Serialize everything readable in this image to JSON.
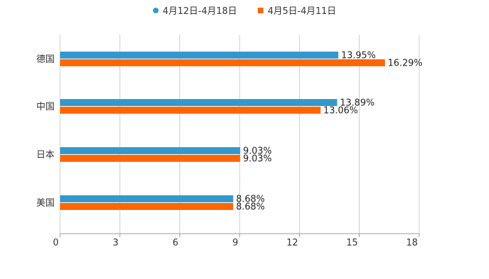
{
  "legend": [
    {
      "label": "4月12日-4月18日",
      "color": "#3399cc",
      "marker": "circle"
    },
    {
      "label": "4月5日-4月11日",
      "color": "#ff6600",
      "marker": "square"
    }
  ],
  "chart_data": {
    "type": "bar",
    "orientation": "horizontal",
    "categories": [
      "德国",
      "中国",
      "日本",
      "美国"
    ],
    "series": [
      {
        "name": "4月12日-4月18日",
        "color": "#3399cc",
        "values": [
          13.95,
          13.89,
          9.03,
          8.68
        ],
        "labels": [
          "13.95%",
          "13.89%",
          "9.03%",
          "8.68%"
        ]
      },
      {
        "name": "4月5日-4月11日",
        "color": "#ff6600",
        "values": [
          16.29,
          13.06,
          9.03,
          8.68
        ],
        "labels": [
          "16.29%",
          "13.06%",
          "9.03%",
          "8.68%"
        ]
      }
    ],
    "xticks": [
      "0",
      "3",
      "6",
      "9",
      "12",
      "15",
      "18"
    ],
    "xlim": [
      0,
      18
    ],
    "grid": true,
    "legend_position": "top",
    "title": "",
    "xlabel": "",
    "ylabel": ""
  }
}
